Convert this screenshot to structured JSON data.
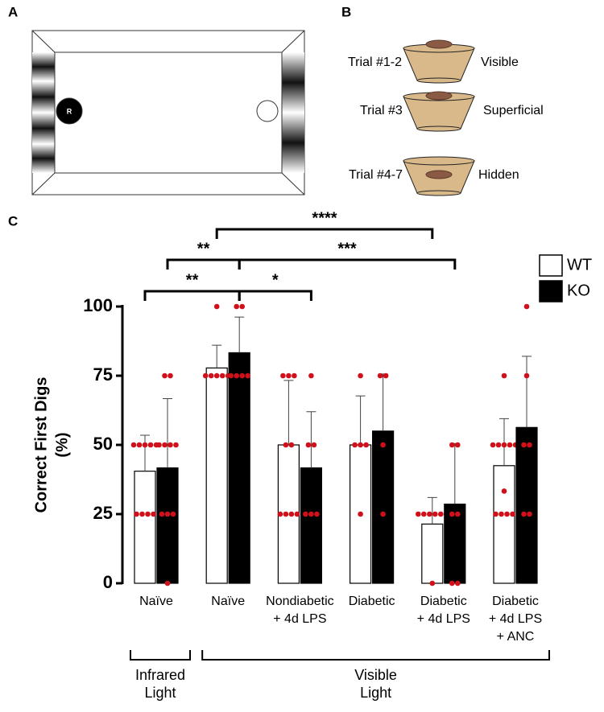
{
  "panels": {
    "a": {
      "label": "A",
      "robot": "R"
    },
    "b": {
      "label": "B",
      "trials": [
        {
          "trial": "Trial #1-2",
          "condition": "Visible"
        },
        {
          "trial": "Trial #3",
          "condition": "Superficial"
        },
        {
          "trial": "Trial #4-7",
          "condition": "Hidden"
        }
      ]
    },
    "c": {
      "label": "C"
    }
  },
  "chart_data": {
    "type": "bar",
    "y_label": [
      "Correct First Digs",
      "(%)"
    ],
    "categories": [
      [
        "Naïve"
      ],
      [
        "Naïve"
      ],
      [
        "Nondiabetic",
        "+ 4d LPS"
      ],
      [
        "Diabetic"
      ],
      [
        "Diabetic",
        "+ 4d LPS"
      ],
      [
        "Diabetic",
        "+ 4d LPS",
        "+ ANC"
      ]
    ],
    "groups": [
      {
        "label": [
          "Infrared",
          "Light"
        ],
        "categories": [
          0,
          0
        ]
      },
      {
        "label": [
          "Visible",
          "Light"
        ],
        "categories": [
          1,
          5
        ]
      }
    ],
    "series": [
      {
        "name": "WT",
        "color": "#ffffff",
        "values": [
          40.5,
          77.8,
          50,
          50,
          21.4,
          42.5
        ],
        "errors": [
          13,
          8.2,
          23.3,
          17.7,
          9.6,
          17
        ],
        "points": [
          [
            50,
            50,
            50,
            50,
            50,
            25,
            25,
            25,
            25
          ],
          [
            100,
            75,
            75,
            75,
            75,
            75
          ],
          [
            75,
            75,
            75,
            50,
            50,
            25,
            25,
            25,
            25
          ],
          [
            75,
            50,
            50,
            50,
            25
          ],
          [
            25,
            25,
            25,
            25,
            25,
            25,
            0
          ],
          [
            75,
            50,
            50,
            50,
            50,
            50,
            33.3,
            25,
            25,
            25,
            25
          ]
        ]
      },
      {
        "name": "KO",
        "color": "#000000",
        "values": [
          41.7,
          83.3,
          41.7,
          55,
          28.6,
          56.3
        ],
        "errors": [
          25,
          12.9,
          20.3,
          20.6,
          21.9,
          25.7
        ],
        "points": [
          [
            75,
            75,
            50,
            50,
            50,
            50,
            25,
            25,
            25,
            0
          ],
          [
            100,
            100,
            75,
            75,
            75,
            75
          ],
          [
            75,
            50,
            50,
            25,
            25,
            25
          ],
          [
            75,
            75,
            50,
            25
          ],
          [
            50,
            50,
            25,
            25,
            0,
            0
          ],
          [
            100,
            75,
            50,
            50,
            25,
            25
          ]
        ]
      }
    ],
    "comparisons": [
      {
        "label": "**",
        "a": [
          0,
          0
        ],
        "b": [
          1,
          1
        ]
      },
      {
        "label": "**",
        "a": [
          0,
          1
        ],
        "b": [
          1,
          1
        ]
      },
      {
        "label": "*",
        "a": [
          1,
          1
        ],
        "b": [
          2,
          1
        ]
      },
      {
        "label": "***",
        "a": [
          1,
          1
        ],
        "b": [
          4,
          1
        ]
      },
      {
        "label": "****",
        "a": [
          1,
          0
        ],
        "b": [
          4,
          0
        ]
      }
    ],
    "point_color": "#d0101a",
    "ylim": [
      0,
      100
    ],
    "yticks": [
      0,
      25,
      50,
      75,
      100
    ],
    "grid": false,
    "legend": "top-right"
  }
}
